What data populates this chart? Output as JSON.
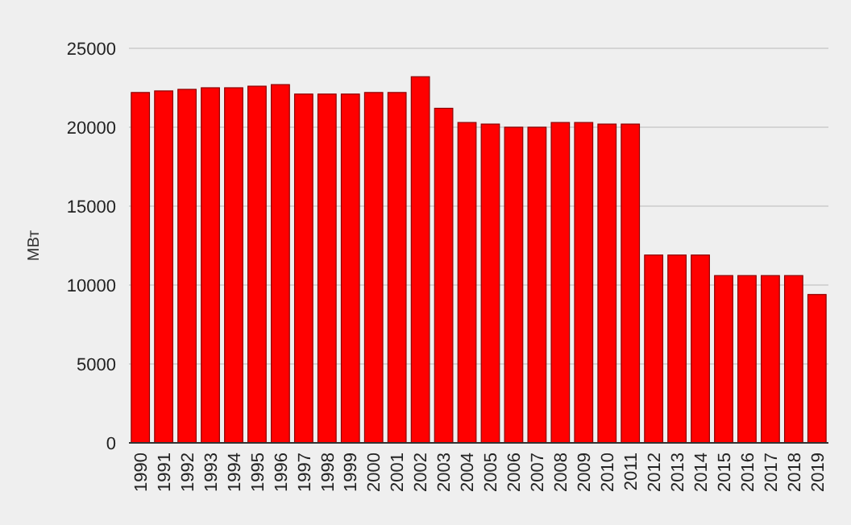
{
  "chart_data": {
    "type": "bar",
    "ylabel": "МВт",
    "categories": [
      "1990",
      "1991",
      "1992",
      "1993",
      "1994",
      "1995",
      "1996",
      "1997",
      "1998",
      "1999",
      "2000",
      "2001",
      "2002",
      "2003",
      "2004",
      "2005",
      "2006",
      "2007",
      "2008",
      "2009",
      "2010",
      "2011",
      "2012",
      "2013",
      "2014",
      "2015",
      "2016",
      "2017",
      "2018",
      "2019"
    ],
    "values": [
      22200,
      22300,
      22400,
      22500,
      22500,
      22600,
      22700,
      22100,
      22100,
      22100,
      22200,
      22200,
      23200,
      21200,
      20300,
      20200,
      20000,
      20000,
      20300,
      20300,
      20200,
      20200,
      11900,
      11900,
      11900,
      10600,
      10600,
      10600,
      10600,
      9400
    ],
    "color": "#ff0000",
    "ylim": [
      0,
      25000
    ],
    "yticks": [
      0,
      5000,
      10000,
      15000,
      20000,
      25000
    ],
    "grid": "y"
  }
}
